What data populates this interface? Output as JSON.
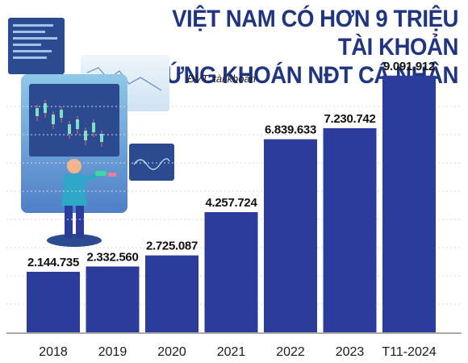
{
  "title_line1": "VIỆT NAM CÓ HƠN 9 TRIỆU TÀI KHOẢN",
  "title_line2": "CHỨNG KHOÁN NĐT CÁ NHÂN",
  "unit": "ĐVT: tài khoản",
  "colors": {
    "bar": "#2b3c9a",
    "title": "#20357f",
    "accent": "#2fa8c8"
  },
  "chart_data": {
    "type": "bar",
    "categories": [
      "2018",
      "2019",
      "2020",
      "2021",
      "2022",
      "2023",
      "T11-2024"
    ],
    "values": [
      2144735,
      2332560,
      2725087,
      4257724,
      6839633,
      7230742,
      9091912
    ],
    "value_labels": [
      "2.144.735",
      "2.332.560",
      "2.725.087",
      "4.257.724",
      "6.839.633",
      "7.230.742",
      "9.091.912"
    ],
    "ylim": [
      0,
      10000000
    ],
    "grid": true,
    "legend": "none"
  }
}
